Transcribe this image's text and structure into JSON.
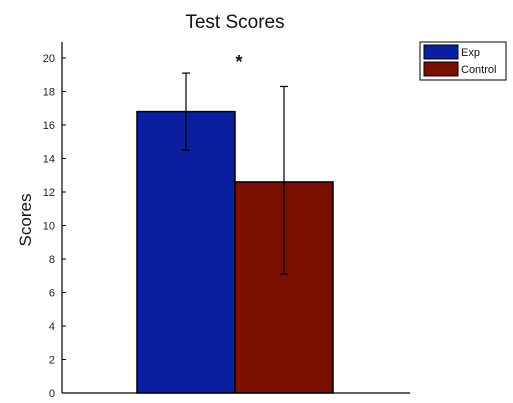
{
  "chart_data": {
    "type": "bar",
    "title": "Test Scores",
    "xlabel": "",
    "ylabel": "Scores",
    "ylim": [
      0,
      21
    ],
    "yticks": [
      0,
      2,
      4,
      6,
      8,
      10,
      12,
      14,
      16,
      18,
      20
    ],
    "grid": false,
    "legend_position": "top-right",
    "series": [
      {
        "name": "Exp",
        "value": 16.8,
        "error_low": 14.5,
        "error_high": 19.1,
        "color": "#0a1fa0"
      },
      {
        "name": "Control",
        "value": 12.6,
        "error_low": 7.1,
        "error_high": 18.3,
        "color": "#7a0f00"
      }
    ],
    "annotation": "*"
  }
}
